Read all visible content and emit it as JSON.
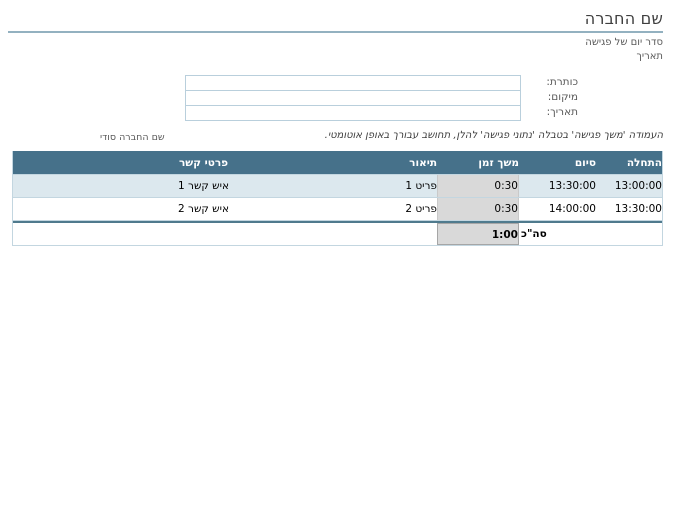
{
  "page": {
    "title": "שם החברה",
    "subtitle": "סדר יום של פגישה",
    "date_label": "תאריך"
  },
  "form": {
    "fields": [
      {
        "label": "כותרת:",
        "value": ""
      },
      {
        "label": "מיקום:",
        "value": ""
      },
      {
        "label": "תאריך:",
        "value": ""
      }
    ]
  },
  "auto_note": "העמודה 'משך פגישה' בטבלה 'נתוני פגישה' להלן, תחושב עבורך באופן אוטומטי.",
  "confidential_note": "שם החברה סודי",
  "table": {
    "headers": [
      "התחלה",
      "סיום",
      "משך זמן",
      "תיאור",
      "פרטי קשר"
    ],
    "rows": [
      {
        "start": "13:00:00",
        "end": "13:30:00",
        "duration": "0:30",
        "description": "פריט 1",
        "contact": "איש קשר 1"
      },
      {
        "start": "13:30:00",
        "end": "14:00:00",
        "duration": "0:30",
        "description": "פריט 2",
        "contact": "איש קשר 2"
      }
    ],
    "total": {
      "label": "סה\"כ",
      "duration": "1:00"
    }
  },
  "colors": {
    "header_bg": "#46718a",
    "row_alt_bg": "#dce8ee",
    "duration_bg": "#d9d9d9",
    "table_border": "#c3d6e0",
    "accent_line": "#93b1c0",
    "input_border": "#b9cfdc",
    "total_sep": "#4f7a8d"
  }
}
